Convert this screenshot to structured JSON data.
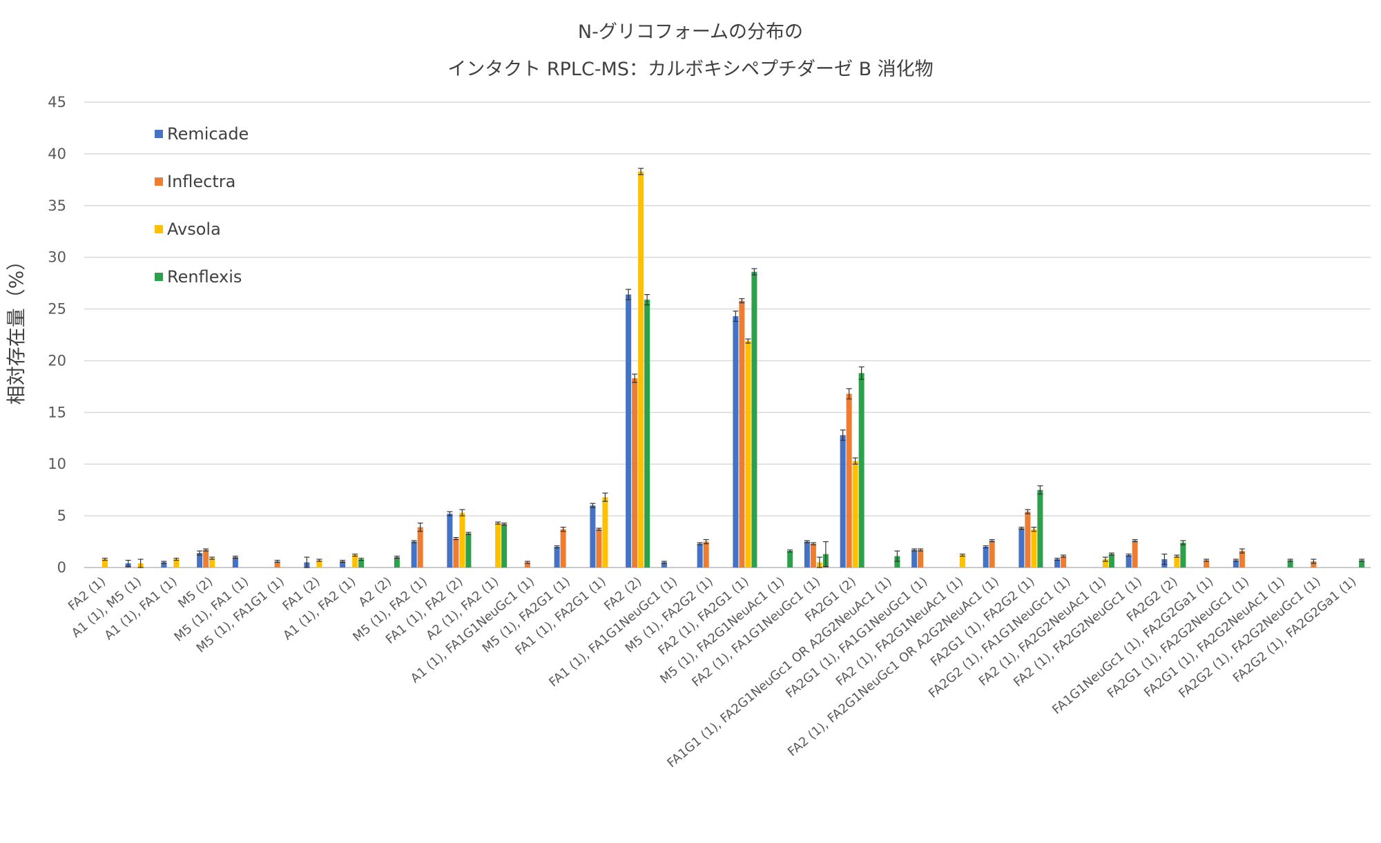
{
  "chart_data": {
    "type": "bar",
    "title_lines": [
      "N-グリコフォームの分布の",
      "インタクト RPLC-MS：カルボキシペプチダーゼ B 消化物"
    ],
    "xlabel": "",
    "ylabel": "相対存在量（%）",
    "ylim": [
      0,
      45
    ],
    "yticks": [
      0,
      5,
      10,
      15,
      20,
      25,
      30,
      35,
      40,
      45
    ],
    "grid": true,
    "error_bars": true,
    "legend_position": "top-left",
    "categories": [
      "FA2 (1)",
      "A1 (1), M5 (1)",
      "A1 (1), FA1 (1)",
      "M5 (2)",
      "M5 (1), FA1 (1)",
      "M5 (1), FA1G1 (1)",
      "FA1 (2)",
      "A1 (1), FA2 (1)",
      "A2 (2)",
      "M5 (1), FA2 (1)",
      "FA1 (1), FA2 (2)",
      "A2 (1), FA2 (1)",
      "A1 (1), FA1G1NeuGc1 (1)",
      "M5 (1), FA2G1 (1)",
      "FA1 (1), FA2G1 (1)",
      "FA2 (2)",
      "FA1 (1), FA1G1NeuGc1 (1)",
      "M5 (1), FA2G2 (1)",
      "FA2 (1), FA2G1 (1)",
      "M5 (1), FA2G1NeuAc1 (1)",
      "FA2 (1), FA1G1NeuGc1 (1)",
      "FA2G1 (2)",
      "FA1G1 (1), FA2G1NeuGc1 OR A2G2NeuAc1 (1)",
      "FA2G1 (1), FA1G1NeuGc1 (1)",
      "FA2 (1), FA2G1NeuAc1 (1)",
      "FA2 (1), FA2G1NeuGc1 OR A2G2NeuAc1 (1)",
      "FA2G1 (1), FA2G2 (1)",
      "FA2G2 (1), FA1G1NeuGc1 (1)",
      "FA2 (1), FA2G2NeuAc1 (1)",
      "FA2 (1), FA2G2NeuGc1 (1)",
      "FA2G2 (2)",
      "FA1G1NeuGc1 (1), FA2G2Ga1 (1)",
      "FA2G1 (1), FA2G2NeuGc1 (1)",
      "FA2G1 (1), FA2G2NeuAc1 (1)",
      "FA2G2 (1), FA2G2NeuGc1 (1)",
      "FA2G2 (1), FA2G2Ga1 (1)"
    ],
    "series": [
      {
        "name": "Remicade",
        "color": "#4472C4",
        "values": [
          0,
          0.4,
          0.5,
          1.4,
          1.0,
          0,
          0.5,
          0.6,
          0,
          2.5,
          5.2,
          0,
          0,
          2.0,
          6.0,
          26.4,
          0.5,
          2.3,
          24.3,
          0,
          2.5,
          12.8,
          0,
          1.7,
          0,
          2.0,
          3.8,
          0.8,
          0,
          1.2,
          0.8,
          0,
          0.7,
          0,
          0,
          0
        ],
        "errors": [
          0,
          0.3,
          0.1,
          0.2,
          0.1,
          0,
          0.5,
          0.1,
          0,
          0.1,
          0.2,
          0,
          0,
          0.1,
          0.2,
          0.5,
          0.1,
          0.1,
          0.5,
          0,
          0.1,
          0.5,
          0,
          0.1,
          0,
          0.1,
          0.1,
          0.1,
          0,
          0.1,
          0.5,
          0,
          0.1,
          0,
          0,
          0
        ]
      },
      {
        "name": "Inflectra",
        "color": "#ED7D31",
        "values": [
          0,
          0,
          0,
          1.7,
          0,
          0.6,
          0,
          0,
          0,
          3.9,
          2.8,
          0,
          0.5,
          3.7,
          3.7,
          18.3,
          0,
          2.5,
          25.8,
          0,
          2.3,
          16.8,
          0,
          1.7,
          0,
          2.6,
          5.4,
          1.1,
          0,
          2.6,
          0,
          0.7,
          1.6,
          0,
          0.6,
          0
        ],
        "errors": [
          0,
          0,
          0,
          0.1,
          0,
          0.1,
          0,
          0,
          0,
          0.4,
          0.1,
          0,
          0.1,
          0.2,
          0.1,
          0.4,
          0,
          0.2,
          0.2,
          0,
          0.1,
          0.5,
          0,
          0.1,
          0,
          0.1,
          0.2,
          0.1,
          0,
          0.1,
          0,
          0.1,
          0.2,
          0,
          0.2,
          0
        ]
      },
      {
        "name": "Avsola",
        "color": "#FFC000",
        "values": [
          0.8,
          0.4,
          0.8,
          0.9,
          0,
          0,
          0.7,
          1.2,
          0,
          0,
          5.3,
          4.3,
          0,
          0,
          6.8,
          38.3,
          0,
          0,
          21.9,
          0,
          0.5,
          10.3,
          0,
          0,
          1.2,
          0,
          3.7,
          0,
          0.8,
          0,
          1.1,
          0,
          0,
          0,
          0,
          0
        ],
        "errors": [
          0.1,
          0.4,
          0.1,
          0.1,
          0,
          0,
          0.1,
          0.1,
          0,
          0,
          0.3,
          0.1,
          0,
          0,
          0.4,
          0.3,
          0,
          0,
          0.2,
          0,
          0.5,
          0.3,
          0,
          0,
          0.1,
          0,
          0.2,
          0,
          0.2,
          0,
          0.1,
          0,
          0,
          0,
          0,
          0
        ]
      },
      {
        "name": "Renflexis",
        "color": "#2CA04A",
        "values": [
          0,
          0,
          0,
          0,
          0,
          0,
          0,
          0.8,
          1.0,
          0,
          3.3,
          4.2,
          0,
          0,
          0,
          25.9,
          0,
          0,
          28.6,
          1.6,
          1.3,
          18.8,
          1.1,
          0,
          0,
          0,
          7.5,
          0,
          1.3,
          0,
          2.4,
          0,
          0,
          0.7,
          0,
          0.7
        ],
        "errors": [
          0,
          0,
          0,
          0,
          0,
          0,
          0,
          0.1,
          0.1,
          0,
          0.1,
          0.1,
          0,
          0,
          0,
          0.5,
          0,
          0,
          0.3,
          0.1,
          1.2,
          0.6,
          0.5,
          0,
          0,
          0,
          0.4,
          0,
          0.1,
          0,
          0.2,
          0,
          0,
          0.1,
          0,
          0.1
        ]
      }
    ]
  }
}
